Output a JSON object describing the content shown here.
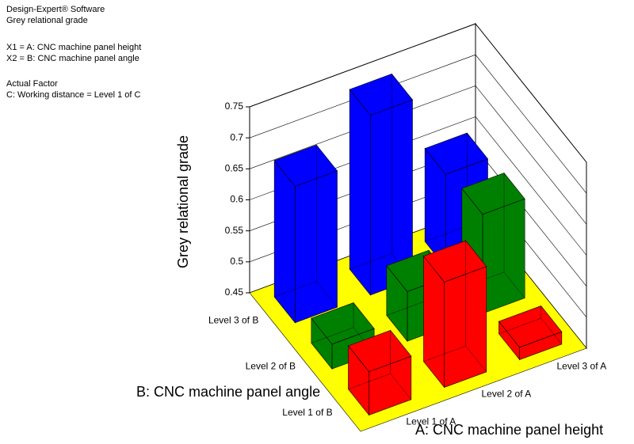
{
  "chart_data": {
    "type": "bar3d",
    "annotations": [
      "Design-Expert® Software",
      "Grey relational grade",
      "X1 = A: CNC machine panel height",
      "X2 = B: CNC machine panel angle",
      "Actual Factor",
      "C: Working distance = Level 1 of C"
    ],
    "x_label": "A: CNC machine panel height",
    "y_label": "B: CNC machine panel angle",
    "z_label": "Grey relational grade",
    "categories": [
      "Level 1 of A",
      "Level 2 of A",
      "Level 3 of A"
    ],
    "y_categories": [
      "Level 1 of B",
      "Level 2 of B",
      "Level 3 of B"
    ],
    "series": [
      {
        "color": "#ff0000",
        "values": [
          0.52,
          0.62,
          0.47
        ]
      },
      {
        "color": "#008000",
        "values": [
          0.49,
          0.53,
          0.61
        ]
      },
      {
        "color": "#0000ff",
        "values": [
          0.67,
          0.74,
          0.6
        ]
      }
    ],
    "zlim": [
      0.45,
      0.75
    ],
    "zticks": [
      0.45,
      0.5,
      0.55,
      0.6,
      0.65,
      0.7,
      0.75
    ],
    "floor_color": "#ffff00",
    "grid": true
  }
}
